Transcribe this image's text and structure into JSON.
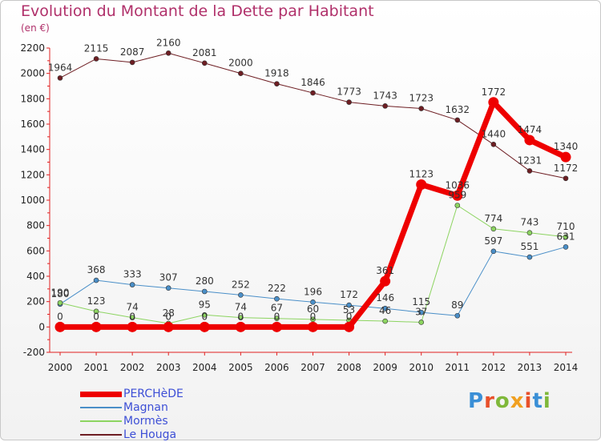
{
  "title": "Evolution du Montant de la Dette par Habitant",
  "unit": "(en €)",
  "logo": {
    "text": "Proxiti",
    "colors": [
      "#3a8fd6",
      "#e8502a",
      "#7fb83a",
      "#f0a020",
      "#e8502a",
      "#3a8fd6",
      "#7fb83a"
    ]
  },
  "chart_data": {
    "type": "line",
    "x": [
      2000,
      2001,
      2002,
      2003,
      2004,
      2005,
      2006,
      2007,
      2008,
      2009,
      2010,
      2011,
      2012,
      2013,
      2014
    ],
    "ylim": [
      -200,
      2200
    ],
    "yticks": [
      -200,
      0,
      200,
      400,
      600,
      800,
      1000,
      1200,
      1400,
      1600,
      1800,
      2000,
      2200
    ],
    "grid": false,
    "legend_position": "bottom-left",
    "series": [
      {
        "name": "Le Houga",
        "color": "#6e1e23",
        "width": 1,
        "values": [
          1964,
          2115,
          2087,
          2160,
          2081,
          2000,
          1918,
          1846,
          1773,
          1743,
          1723,
          1632,
          1440,
          1231,
          1172
        ],
        "labels": [
          "1964",
          "2115",
          "2087",
          "2160",
          "2081",
          "2000",
          "1918",
          "1846",
          "1773",
          "1743",
          "1723",
          "1632",
          "1440",
          "1231",
          "1172"
        ]
      },
      {
        "name": "Magnan",
        "color": "#4a8fc8",
        "width": 1,
        "values": [
          180,
          368,
          333,
          307,
          280,
          252,
          222,
          196,
          172,
          146,
          115,
          89,
          597,
          551,
          631
        ],
        "labels": [
          "180",
          "368",
          "333",
          "307",
          "280",
          "252",
          "222",
          "196",
          "172",
          "146",
          "115",
          "89",
          "597",
          "551",
          "631"
        ]
      },
      {
        "name": "Mormès",
        "color": "#8cd460",
        "width": 1,
        "values": [
          190,
          123,
          74,
          28,
          95,
          74,
          67,
          60,
          53,
          46,
          37,
          959,
          774,
          743,
          710
        ],
        "labels": [
          "190",
          "123",
          "74",
          "28",
          "95",
          "74",
          "67",
          "60",
          "53",
          "46",
          "37",
          "959",
          "774",
          "743",
          "710"
        ]
      },
      {
        "name": "PERCHèDE",
        "color": "#ee0000",
        "width": 7,
        "values": [
          0,
          0,
          0,
          0,
          0,
          0,
          0,
          0,
          0,
          361,
          1123,
          1036,
          1772,
          1474,
          1340
        ],
        "labels": [
          "0",
          "0",
          "0",
          "0",
          "0",
          "0",
          "0",
          "0",
          "0",
          "361",
          "1123",
          "1036",
          "1772",
          "1474",
          "1340"
        ]
      }
    ]
  }
}
